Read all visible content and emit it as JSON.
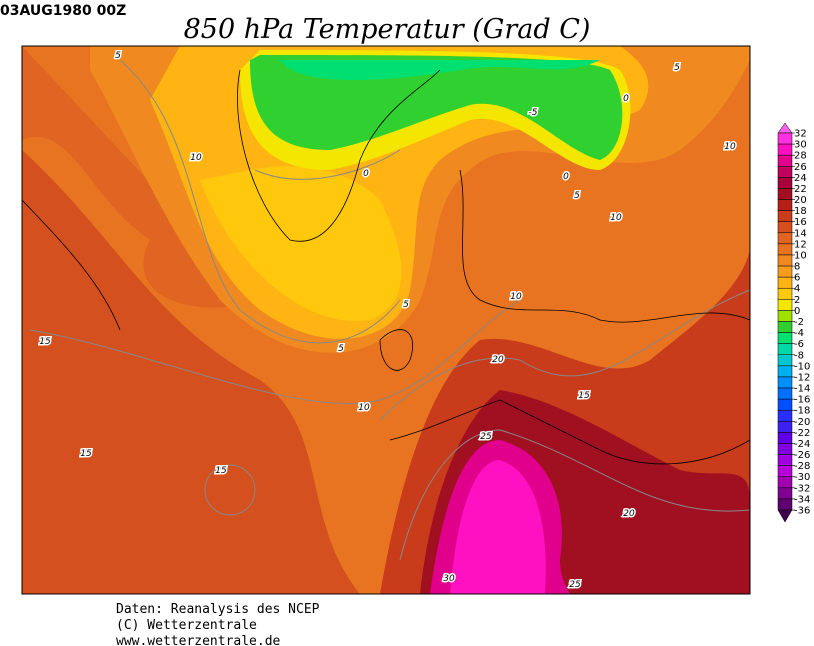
{
  "header": {
    "timestamp": "03AUG1980 00Z",
    "title": "850 hPa Temperatur (Grad C)"
  },
  "colorbar": {
    "ticks": [
      32,
      30,
      28,
      26,
      24,
      22,
      20,
      18,
      16,
      14,
      12,
      10,
      8,
      6,
      4,
      2,
      0,
      -2,
      -4,
      -6,
      -8,
      -10,
      -12,
      -14,
      -16,
      -18,
      -20,
      -22,
      -24,
      -26,
      -28,
      -30,
      -32,
      -34,
      -36
    ],
    "colors": [
      "#ff5ff0",
      "#ff30e0",
      "#ff10c0",
      "#e0008c",
      "#c00060",
      "#a80038",
      "#a01020",
      "#b42018",
      "#c83c1c",
      "#d4501e",
      "#e06422",
      "#e87422",
      "#f08a20",
      "#f89c1c",
      "#ffb414",
      "#ffc80c",
      "#f5e600",
      "#a0e000",
      "#30d030",
      "#00e070",
      "#00d8a8",
      "#00c8d0",
      "#00b0f0",
      "#0090ff",
      "#0070ff",
      "#0050ff",
      "#2830ff",
      "#4020f0",
      "#6000e8",
      "#8000e0",
      "#a000e0",
      "#b800d8",
      "#a000b0",
      "#800090",
      "#600070",
      "#400050"
    ]
  },
  "contour_labels": [
    "5",
    "10",
    "0",
    "-5",
    "0",
    "5",
    "10",
    "0",
    "5",
    "10",
    "5",
    "5",
    "10",
    "15",
    "20",
    "10",
    "15",
    "25",
    "15",
    "15",
    "20",
    "30",
    "25"
  ],
  "footer": [
    "Daten: Reanalysis des NCEP",
    "(C) Wetterzentrale",
    "www.wetterzentrale.de"
  ]
}
